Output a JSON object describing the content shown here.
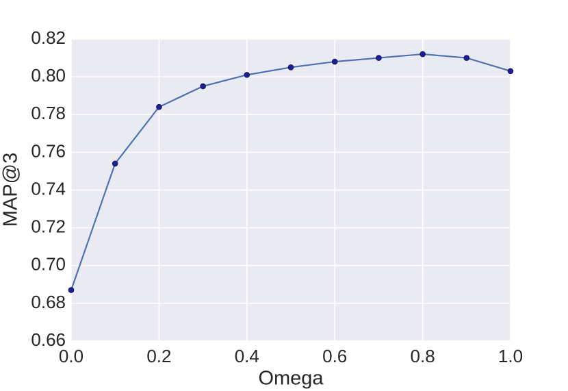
{
  "chart_data": {
    "type": "line",
    "xlabel": "Omega",
    "ylabel": "MAP@3",
    "x": [
      0.0,
      0.1,
      0.2,
      0.3,
      0.4,
      0.5,
      0.6,
      0.7,
      0.8,
      0.9,
      1.0
    ],
    "series": [
      {
        "color": "#4c72b0",
        "marker_color": "#1c1c9c",
        "values": [
          0.687,
          0.754,
          0.784,
          0.795,
          0.801,
          0.805,
          0.808,
          0.81,
          0.812,
          0.81,
          0.803
        ]
      }
    ],
    "xlim": [
      0.0,
      1.0
    ],
    "xticks": [
      {
        "value": 0.0,
        "label": "0.0"
      },
      0.2,
      0.4,
      0.6,
      0.8,
      {
        "value": 1.0,
        "label": "1.0"
      }
    ],
    "ylim": [
      0.66,
      0.82
    ],
    "yticks": [
      0.66,
      0.68,
      {
        "value": 0.7,
        "label": "0.70"
      },
      0.72,
      0.74,
      0.76,
      0.78,
      {
        "value": 0.8,
        "label": "0.80"
      },
      0.82
    ],
    "grid": true,
    "background": "#eaeaf2"
  }
}
